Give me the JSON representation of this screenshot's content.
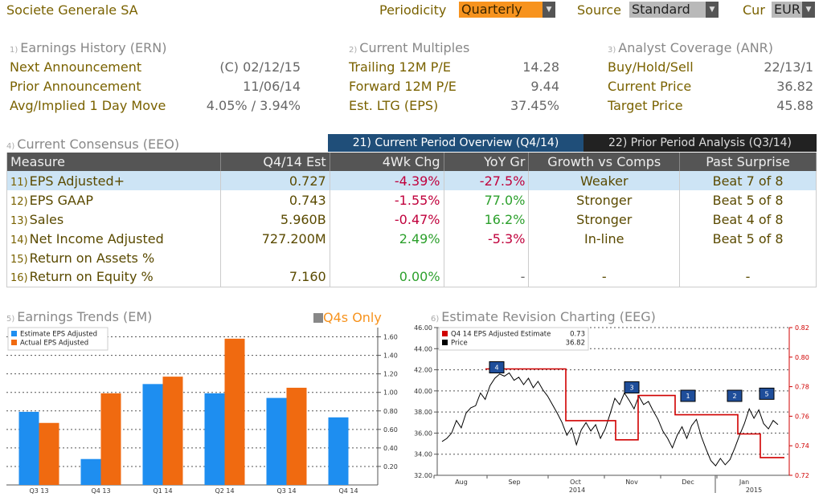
{
  "header": {
    "company": "Societe Generale SA",
    "periodicity_label": "Periodicity",
    "periodicity_value": "Quarterly",
    "source_label": "Source",
    "source_value": "Standard",
    "cur_label": "Cur",
    "cur_value": "EUR"
  },
  "earnings_history": {
    "num": "1)",
    "title": "Earnings History (ERN)",
    "rows": [
      {
        "label": "Next Announcement",
        "value": "(C)  02/12/15"
      },
      {
        "label": "Prior Announcement",
        "value": "11/06/14"
      },
      {
        "label": "Avg/Implied 1 Day Move",
        "value": "4.05% / 3.94%"
      }
    ]
  },
  "current_multiples": {
    "num": "2)",
    "title": "Current Multiples",
    "rows": [
      {
        "label": "Trailing 12M P/E",
        "value": "14.28"
      },
      {
        "label": "Forward 12M P/E",
        "value": "9.44"
      },
      {
        "label": "Est. LTG (EPS)",
        "value": "37.45%"
      }
    ]
  },
  "analyst_coverage": {
    "num": "3)",
    "title": "Analyst Coverage (ANR)",
    "rows": [
      {
        "label": "Buy/Hold/Sell",
        "value": "22/13/1"
      },
      {
        "label": "Current Price",
        "value": "36.82"
      },
      {
        "label": "Target Price",
        "value": "45.88"
      }
    ]
  },
  "consensus": {
    "num": "4)",
    "title": "Current Consensus (EEO)",
    "tab1": "21) Current Period Overview (Q4/14)",
    "tab2": "22) Prior Period Analysis (Q3/14)",
    "columns": [
      "Measure",
      "Q4/14 Est",
      "4Wk Chg",
      "YoY Gr",
      "Growth vs Comps",
      "Past Surprise"
    ],
    "rows": [
      {
        "idx": "11)",
        "measure": "EPS Adjusted+",
        "est": "0.727",
        "chg": "-4.39%",
        "yoy": "-27.5%",
        "comps": "Weaker",
        "surprise": "Beat 7 of 8"
      },
      {
        "idx": "12)",
        "measure": "EPS GAAP",
        "est": "0.743",
        "chg": "-1.55%",
        "yoy": "77.0%",
        "comps": "Stronger",
        "surprise": "Beat 5 of 8"
      },
      {
        "idx": "13)",
        "measure": "Sales",
        "est": "5.960B",
        "chg": "-0.47%",
        "yoy": "16.2%",
        "comps": "Stronger",
        "surprise": "Beat 4 of 8"
      },
      {
        "idx": "14)",
        "measure": "Net Income Adjusted",
        "est": "727.200M",
        "chg": "2.49%",
        "yoy": "-5.3%",
        "comps": "In-line",
        "surprise": "Beat 5 of 8"
      },
      {
        "idx": "15)",
        "measure": "Return on Assets %",
        "est": "",
        "chg": "",
        "yoy": "",
        "comps": "",
        "surprise": ""
      },
      {
        "idx": "16)",
        "measure": "Return on Equity %",
        "est": "7.160",
        "chg": "0.00%",
        "yoy": "-",
        "comps": "-",
        "surprise": "-"
      }
    ],
    "colors": {
      "negative": "#c0003c",
      "positive": "#2ca02c"
    }
  },
  "earnings_trends": {
    "num": "5)",
    "title": "Earnings Trends (EM)",
    "toggle_label": "Q4s Only"
  },
  "estimate_revision": {
    "num": "6)",
    "title": "Estimate Revision Charting (EEG)"
  },
  "chart_data": [
    {
      "type": "bar",
      "categories": [
        "Q3 13",
        "Q4 13",
        "Q1 14",
        "Q2 14",
        "Q3 14",
        "Q4 14"
      ],
      "series": [
        {
          "name": "Estimate EPS Adjusted",
          "color": "#1e8ef0",
          "values": [
            0.79,
            0.28,
            1.09,
            0.99,
            0.94,
            0.73
          ]
        },
        {
          "name": "Actual EPS Adjusted",
          "color": "#f06a10",
          "values": [
            0.67,
            0.99,
            1.17,
            1.58,
            1.05,
            null
          ]
        }
      ],
      "ylim": [
        0,
        1.7
      ],
      "yticks": [
        "0.20",
        "0.40",
        "0.60",
        "0.80",
        "1.00",
        "1.20",
        "1.40",
        "1.60"
      ],
      "legend": "top-left",
      "grid": true
    },
    {
      "type": "line",
      "legend_items": [
        {
          "label": "Q4 14 EPS Adjusted Estimate",
          "value": "0.73",
          "color": "#d00000"
        },
        {
          "label": "Price",
          "value": "36.82",
          "color": "#000000"
        }
      ],
      "left_axis": {
        "ylim": [
          32,
          46
        ],
        "ticks": [
          "32.00",
          "34.00",
          "36.00",
          "38.00",
          "40.00",
          "42.00",
          "44.00",
          "46.00"
        ]
      },
      "right_axis": {
        "ylim": [
          0.72,
          0.82
        ],
        "ticks": [
          "0.72",
          "0.74",
          "0.76",
          "0.78",
          "0.80",
          "0.82"
        ],
        "color": "#d00000"
      },
      "x_labels": [
        "Aug",
        "Sep",
        "Oct",
        "Nov",
        "Dec",
        "Jan"
      ],
      "year_labels": [
        "2014",
        "2015"
      ],
      "markers": [
        "4",
        "3",
        "1",
        "2",
        "5"
      ],
      "grid": true
    }
  ]
}
